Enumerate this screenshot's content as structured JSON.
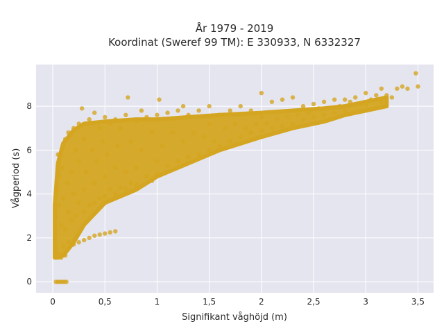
{
  "chart_data": {
    "type": "scatter",
    "title_lines": [
      "År 1979 - 2019",
      "Koordinat (Sweref 99 TM): E 330933, N 6332327"
    ],
    "xlabel": "Signifikant våghöjd (m)",
    "ylabel": "Vågperiod (s)",
    "xlim": [
      -0.16,
      3.65
    ],
    "ylim": [
      -0.5,
      9.9
    ],
    "x_ticks": [
      0,
      0.5,
      1,
      1.5,
      2,
      2.5,
      3,
      3.5
    ],
    "x_tick_labels": [
      "0",
      "0,5",
      "1",
      "1,5",
      "2",
      "2,5",
      "3",
      "3,5"
    ],
    "y_ticks": [
      0,
      2,
      4,
      6,
      8
    ],
    "y_tick_labels": [
      "0",
      "2",
      "4",
      "6",
      "8"
    ],
    "grid": true,
    "colors": {
      "marker": "#D4A520",
      "background": "#E5E5F0",
      "grid": "#ffffff"
    },
    "series": [
      {
        "points": [
          [
            0.03,
            0
          ],
          [
            0.05,
            0
          ],
          [
            0.07,
            0
          ],
          [
            0.09,
            0
          ],
          [
            0.11,
            0
          ],
          [
            0.13,
            0
          ],
          [
            0.03,
            1.5
          ],
          [
            0.05,
            1.3
          ],
          [
            0.08,
            1.1
          ],
          [
            0.1,
            1.6
          ],
          [
            0.12,
            1.2
          ],
          [
            0.15,
            1.8
          ],
          [
            0.2,
            1.7
          ],
          [
            0.25,
            1.8
          ],
          [
            0.3,
            1.9
          ],
          [
            0.35,
            2.0
          ],
          [
            0.4,
            2.1
          ],
          [
            0.45,
            2.15
          ],
          [
            0.5,
            2.2
          ],
          [
            0.55,
            2.25
          ],
          [
            0.6,
            2.3
          ],
          [
            0.03,
            3.0
          ],
          [
            0.04,
            4.2
          ],
          [
            0.05,
            5.8
          ],
          [
            0.06,
            3.5
          ],
          [
            0.07,
            4.8
          ],
          [
            0.08,
            2.6
          ],
          [
            0.09,
            5.2
          ],
          [
            0.1,
            6.2
          ],
          [
            0.1,
            3.8
          ],
          [
            0.12,
            6.5
          ],
          [
            0.12,
            2.4
          ],
          [
            0.14,
            4.5
          ],
          [
            0.15,
            6.8
          ],
          [
            0.15,
            3.2
          ],
          [
            0.18,
            5.0
          ],
          [
            0.18,
            2.8
          ],
          [
            0.2,
            7.0
          ],
          [
            0.2,
            4.0
          ],
          [
            0.22,
            6.0
          ],
          [
            0.22,
            3.0
          ],
          [
            0.25,
            5.5
          ],
          [
            0.25,
            7.2
          ],
          [
            0.25,
            3.6
          ],
          [
            0.28,
            7.9
          ],
          [
            0.3,
            6.5
          ],
          [
            0.3,
            4.2
          ],
          [
            0.3,
            3.2
          ],
          [
            0.32,
            5.0
          ],
          [
            0.35,
            7.4
          ],
          [
            0.35,
            3.5
          ],
          [
            0.38,
            6.0
          ],
          [
            0.4,
            7.7
          ],
          [
            0.4,
            4.5
          ],
          [
            0.4,
            3.6
          ],
          [
            0.42,
            5.5
          ],
          [
            0.45,
            7.0
          ],
          [
            0.45,
            3.8
          ],
          [
            0.48,
            6.4
          ],
          [
            0.5,
            7.5
          ],
          [
            0.5,
            4.8
          ],
          [
            0.5,
            3.9
          ],
          [
            0.52,
            5.8
          ],
          [
            0.55,
            7.2
          ],
          [
            0.55,
            4.2
          ],
          [
            0.6,
            7.4
          ],
          [
            0.6,
            5.2
          ],
          [
            0.6,
            4.0
          ],
          [
            0.62,
            6.2
          ],
          [
            0.65,
            7.0
          ],
          [
            0.65,
            4.3
          ],
          [
            0.7,
            7.6
          ],
          [
            0.7,
            5.0
          ],
          [
            0.7,
            4.2
          ],
          [
            0.72,
            8.4
          ],
          [
            0.75,
            6.4
          ],
          [
            0.75,
            4.5
          ],
          [
            0.8,
            7.3
          ],
          [
            0.8,
            5.2
          ],
          [
            0.8,
            4.4
          ],
          [
            0.85,
            6.0
          ],
          [
            0.85,
            7.8
          ],
          [
            0.9,
            7.5
          ],
          [
            0.9,
            4.8
          ],
          [
            0.95,
            6.8
          ],
          [
            0.95,
            4.6
          ],
          [
            1.0,
            7.6
          ],
          [
            1.0,
            5.5
          ],
          [
            1.0,
            4.9
          ],
          [
            1.02,
            8.3
          ],
          [
            1.05,
            6.2
          ],
          [
            1.1,
            7.7
          ],
          [
            1.1,
            5.3
          ],
          [
            1.15,
            6.8
          ],
          [
            1.2,
            7.8
          ],
          [
            1.2,
            5.5
          ],
          [
            1.25,
            6.4
          ],
          [
            1.25,
            8.0
          ],
          [
            1.3,
            7.6
          ],
          [
            1.3,
            5.7
          ],
          [
            1.35,
            6.8
          ],
          [
            1.4,
            7.8
          ],
          [
            1.4,
            5.8
          ],
          [
            1.45,
            6.6
          ],
          [
            1.5,
            8.0
          ],
          [
            1.5,
            6.0
          ],
          [
            1.5,
            7.2
          ],
          [
            1.55,
            6.4
          ],
          [
            1.6,
            7.6
          ],
          [
            1.6,
            6.2
          ],
          [
            1.65,
            7.0
          ],
          [
            1.7,
            7.8
          ],
          [
            1.7,
            6.4
          ],
          [
            1.75,
            7.2
          ],
          [
            1.8,
            8.0
          ],
          [
            1.8,
            6.6
          ],
          [
            1.85,
            7.0
          ],
          [
            1.9,
            7.8
          ],
          [
            1.9,
            6.8
          ],
          [
            1.95,
            7.2
          ],
          [
            2.0,
            8.6
          ],
          [
            2.0,
            6.9
          ],
          [
            2.0,
            7.5
          ],
          [
            2.05,
            7.2
          ],
          [
            2.1,
            8.2
          ],
          [
            2.1,
            7.0
          ],
          [
            2.15,
            7.4
          ],
          [
            2.2,
            8.3
          ],
          [
            2.2,
            7.1
          ],
          [
            2.25,
            7.5
          ],
          [
            2.3,
            8.4
          ],
          [
            2.3,
            7.2
          ],
          [
            2.35,
            7.6
          ],
          [
            2.4,
            8.0
          ],
          [
            2.4,
            7.4
          ],
          [
            2.45,
            7.7
          ],
          [
            2.5,
            8.1
          ],
          [
            2.5,
            7.5
          ],
          [
            2.55,
            7.9
          ],
          [
            2.6,
            8.2
          ],
          [
            2.6,
            7.6
          ],
          [
            2.65,
            7.9
          ],
          [
            2.7,
            8.3
          ],
          [
            2.7,
            7.7
          ],
          [
            2.75,
            8.0
          ],
          [
            2.8,
            8.3
          ],
          [
            2.8,
            7.8
          ],
          [
            2.85,
            8.2
          ],
          [
            2.9,
            8.4
          ],
          [
            2.95,
            8.1
          ],
          [
            3.0,
            8.6
          ],
          [
            3.0,
            8.1
          ],
          [
            3.05,
            8.3
          ],
          [
            3.1,
            8.5
          ],
          [
            3.15,
            8.8
          ],
          [
            3.15,
            8.2
          ],
          [
            3.2,
            8.5
          ],
          [
            3.25,
            8.4
          ],
          [
            3.3,
            8.8
          ],
          [
            3.35,
            8.9
          ],
          [
            3.4,
            8.8
          ],
          [
            3.48,
            9.5
          ],
          [
            3.5,
            8.9
          ]
        ]
      }
    ],
    "density_bands": [
      {
        "x": [
          0.02,
          0.05,
          0.1,
          0.2,
          0.3,
          0.5,
          0.8,
          1.0,
          1.3,
          1.6,
          2.0,
          2.3,
          2.6,
          2.8,
          3.0,
          3.2
        ],
        "ylow": [
          1.1,
          1.1,
          1.2,
          1.8,
          2.6,
          3.6,
          4.2,
          4.8,
          5.4,
          6.0,
          6.6,
          7.0,
          7.3,
          7.6,
          7.8,
          8.0
        ],
        "yhigh": [
          3.5,
          5.4,
          6.3,
          6.9,
          7.2,
          7.3,
          7.4,
          7.4,
          7.5,
          7.6,
          7.7,
          7.8,
          7.9,
          8.0,
          8.2,
          8.4
        ]
      }
    ]
  }
}
